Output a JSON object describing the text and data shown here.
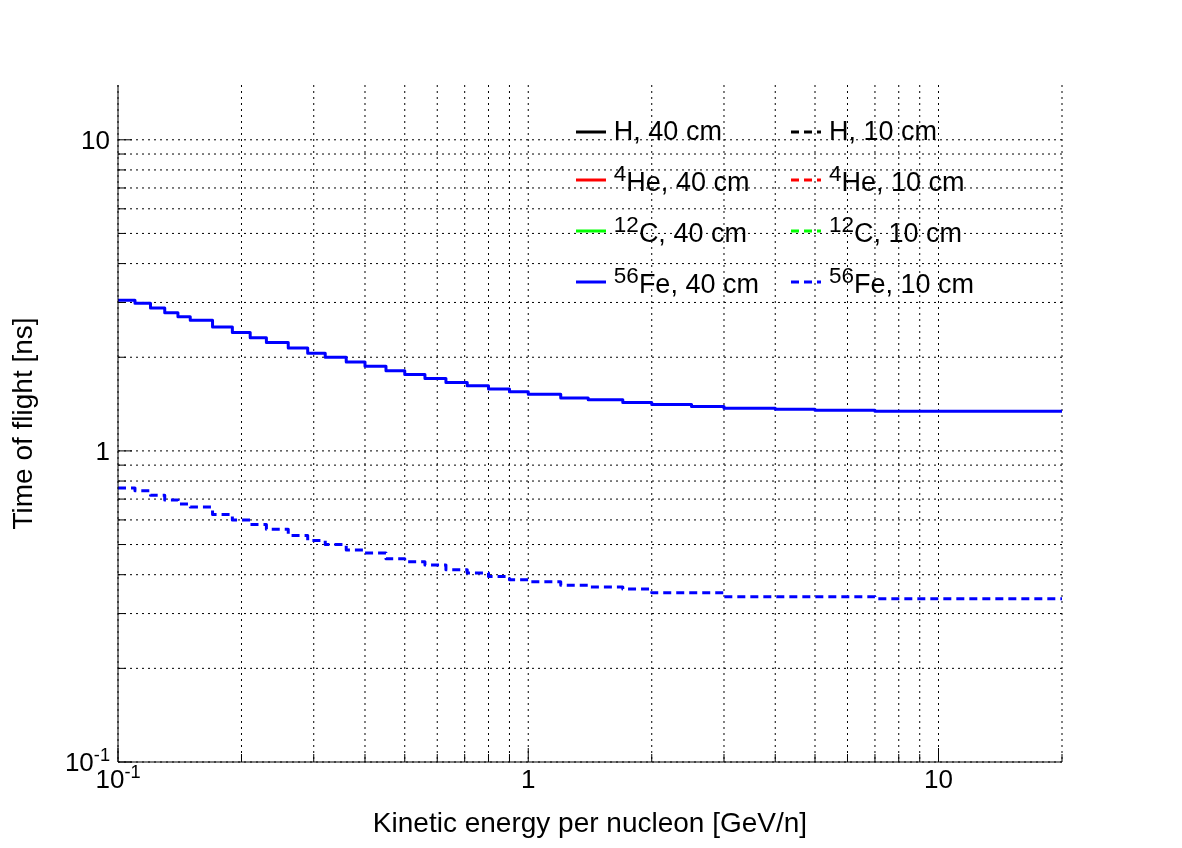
{
  "chart_data": {
    "type": "step",
    "xlabel": "Kinetic energy per nucleon [GeV/n]",
    "ylabel": "Time of flight [ns]",
    "x": [
      0.1,
      0.11,
      0.12,
      0.13,
      0.14,
      0.15,
      0.17,
      0.19,
      0.21,
      0.23,
      0.26,
      0.29,
      0.32,
      0.36,
      0.4,
      0.45,
      0.5,
      0.56,
      0.63,
      0.71,
      0.8,
      0.9,
      1,
      1.2,
      1.4,
      1.7,
      2,
      2.5,
      3,
      4,
      5,
      7,
      10,
      14,
      20
    ],
    "series": [
      {
        "name": "H, 40 cm",
        "color": "#000000",
        "line_style": "solid",
        "values": [
          null,
          null,
          null,
          null,
          null,
          null,
          null,
          null,
          null,
          null,
          null,
          null,
          null,
          null,
          null,
          null,
          null,
          null,
          null,
          null,
          null,
          null,
          null,
          null,
          null,
          null,
          null,
          null,
          null,
          null,
          null,
          null,
          null,
          null,
          null
        ]
      },
      {
        "name": "H, 10 cm",
        "color": "#000000",
        "line_style": "dashed",
        "values": [
          null,
          null,
          null,
          null,
          null,
          null,
          null,
          null,
          null,
          null,
          null,
          null,
          null,
          null,
          null,
          null,
          null,
          null,
          null,
          null,
          null,
          null,
          null,
          null,
          null,
          null,
          null,
          null,
          null,
          null,
          null,
          null,
          null,
          null,
          null
        ]
      },
      {
        "name": "$^{4}$He, 40 cm",
        "color": "#ff0000",
        "line_style": "solid",
        "values": [
          null,
          null,
          null,
          null,
          null,
          null,
          null,
          null,
          null,
          null,
          null,
          null,
          null,
          null,
          null,
          null,
          null,
          null,
          null,
          null,
          null,
          null,
          null,
          null,
          null,
          null,
          null,
          null,
          null,
          null,
          null,
          null,
          null,
          null,
          null
        ]
      },
      {
        "name": "$^{4}$He, 10 cm",
        "color": "#ff0000",
        "line_style": "dashed",
        "values": [
          null,
          null,
          null,
          null,
          null,
          null,
          null,
          null,
          null,
          null,
          null,
          null,
          null,
          null,
          null,
          null,
          null,
          null,
          null,
          null,
          null,
          null,
          null,
          null,
          null,
          null,
          null,
          null,
          null,
          null,
          null,
          null,
          null,
          null,
          null
        ]
      },
      {
        "name": "$^{12}$C, 40 cm",
        "color": "#00ff00",
        "line_style": "solid",
        "values": [
          null,
          null,
          null,
          null,
          null,
          null,
          null,
          null,
          null,
          null,
          null,
          null,
          null,
          null,
          null,
          null,
          null,
          null,
          null,
          null,
          null,
          null,
          null,
          null,
          null,
          null,
          null,
          null,
          null,
          null,
          null,
          null,
          null,
          null,
          null
        ]
      },
      {
        "name": "$^{12}$C, 10 cm",
        "color": "#00ff00",
        "line_style": "dashed",
        "values": [
          null,
          null,
          null,
          null,
          null,
          null,
          null,
          null,
          null,
          null,
          null,
          null,
          null,
          null,
          null,
          null,
          null,
          null,
          null,
          null,
          null,
          null,
          null,
          null,
          null,
          null,
          null,
          null,
          null,
          null,
          null,
          null,
          null,
          null,
          null
        ]
      },
      {
        "name": "$^{56}$Fe, 40 cm",
        "color": "#0000ff",
        "line_style": "solid",
        "values": [
          3.05,
          2.98,
          2.88,
          2.78,
          2.7,
          2.63,
          2.5,
          2.4,
          2.31,
          2.23,
          2.14,
          2.06,
          2.0,
          1.93,
          1.87,
          1.81,
          1.76,
          1.71,
          1.66,
          1.62,
          1.58,
          1.55,
          1.52,
          1.48,
          1.46,
          1.43,
          1.41,
          1.39,
          1.37,
          1.36,
          1.35,
          1.34,
          1.34,
          1.34,
          1.34
        ]
      },
      {
        "name": "$^{56}$Fe, 10 cm",
        "color": "#0000ff",
        "line_style": "dashed",
        "values": [
          0.76,
          0.745,
          0.72,
          0.695,
          0.675,
          0.66,
          0.625,
          0.6,
          0.58,
          0.56,
          0.535,
          0.515,
          0.5,
          0.48,
          0.47,
          0.45,
          0.44,
          0.43,
          0.415,
          0.405,
          0.395,
          0.385,
          0.38,
          0.37,
          0.365,
          0.36,
          0.35,
          0.35,
          0.34,
          0.34,
          0.34,
          0.335,
          0.335,
          0.335,
          0.335
        ]
      }
    ],
    "log": "xy",
    "xlim": [
      0.1,
      20
    ],
    "xticks": [
      {
        "value": 0.1,
        "label": "10$^{-1}$"
      },
      {
        "value": 0.2,
        "label": null
      },
      {
        "value": 0.3,
        "label": null
      },
      {
        "value": 0.4,
        "label": null
      },
      {
        "value": 0.5,
        "label": null
      },
      {
        "value": 0.6,
        "label": null
      },
      {
        "value": 0.7,
        "label": null
      },
      {
        "value": 0.8,
        "label": null
      },
      {
        "value": 0.9,
        "label": null
      },
      {
        "value": 1,
        "label": "1"
      },
      {
        "value": 2,
        "label": null
      },
      {
        "value": 3,
        "label": null
      },
      {
        "value": 4,
        "label": null
      },
      {
        "value": 5,
        "label": null
      },
      {
        "value": 6,
        "label": null
      },
      {
        "value": 7,
        "label": null
      },
      {
        "value": 8,
        "label": null
      },
      {
        "value": 9,
        "label": null
      },
      {
        "value": 10,
        "label": "10"
      },
      {
        "value": 20,
        "label": null
      }
    ],
    "ylim": [
      0.1,
      15
    ],
    "yticks": [
      {
        "value": 0.1,
        "label": "10$^{-1}$"
      },
      {
        "value": 0.2,
        "label": null
      },
      {
        "value": 0.3,
        "label": null
      },
      {
        "value": 0.4,
        "label": null
      },
      {
        "value": 0.5,
        "label": null
      },
      {
        "value": 0.6,
        "label": null
      },
      {
        "value": 0.7,
        "label": null
      },
      {
        "value": 0.8,
        "label": null
      },
      {
        "value": 0.9,
        "label": null
      },
      {
        "value": 1,
        "label": "1"
      },
      {
        "value": 2,
        "label": null
      },
      {
        "value": 3,
        "label": null
      },
      {
        "value": 4,
        "label": null
      },
      {
        "value": 5,
        "label": null
      },
      {
        "value": 6,
        "label": null
      },
      {
        "value": 7,
        "label": null
      },
      {
        "value": 8,
        "label": null
      },
      {
        "value": 9,
        "label": null
      },
      {
        "value": 10,
        "label": "10"
      }
    ],
    "grid": true,
    "legend": "top right"
  }
}
